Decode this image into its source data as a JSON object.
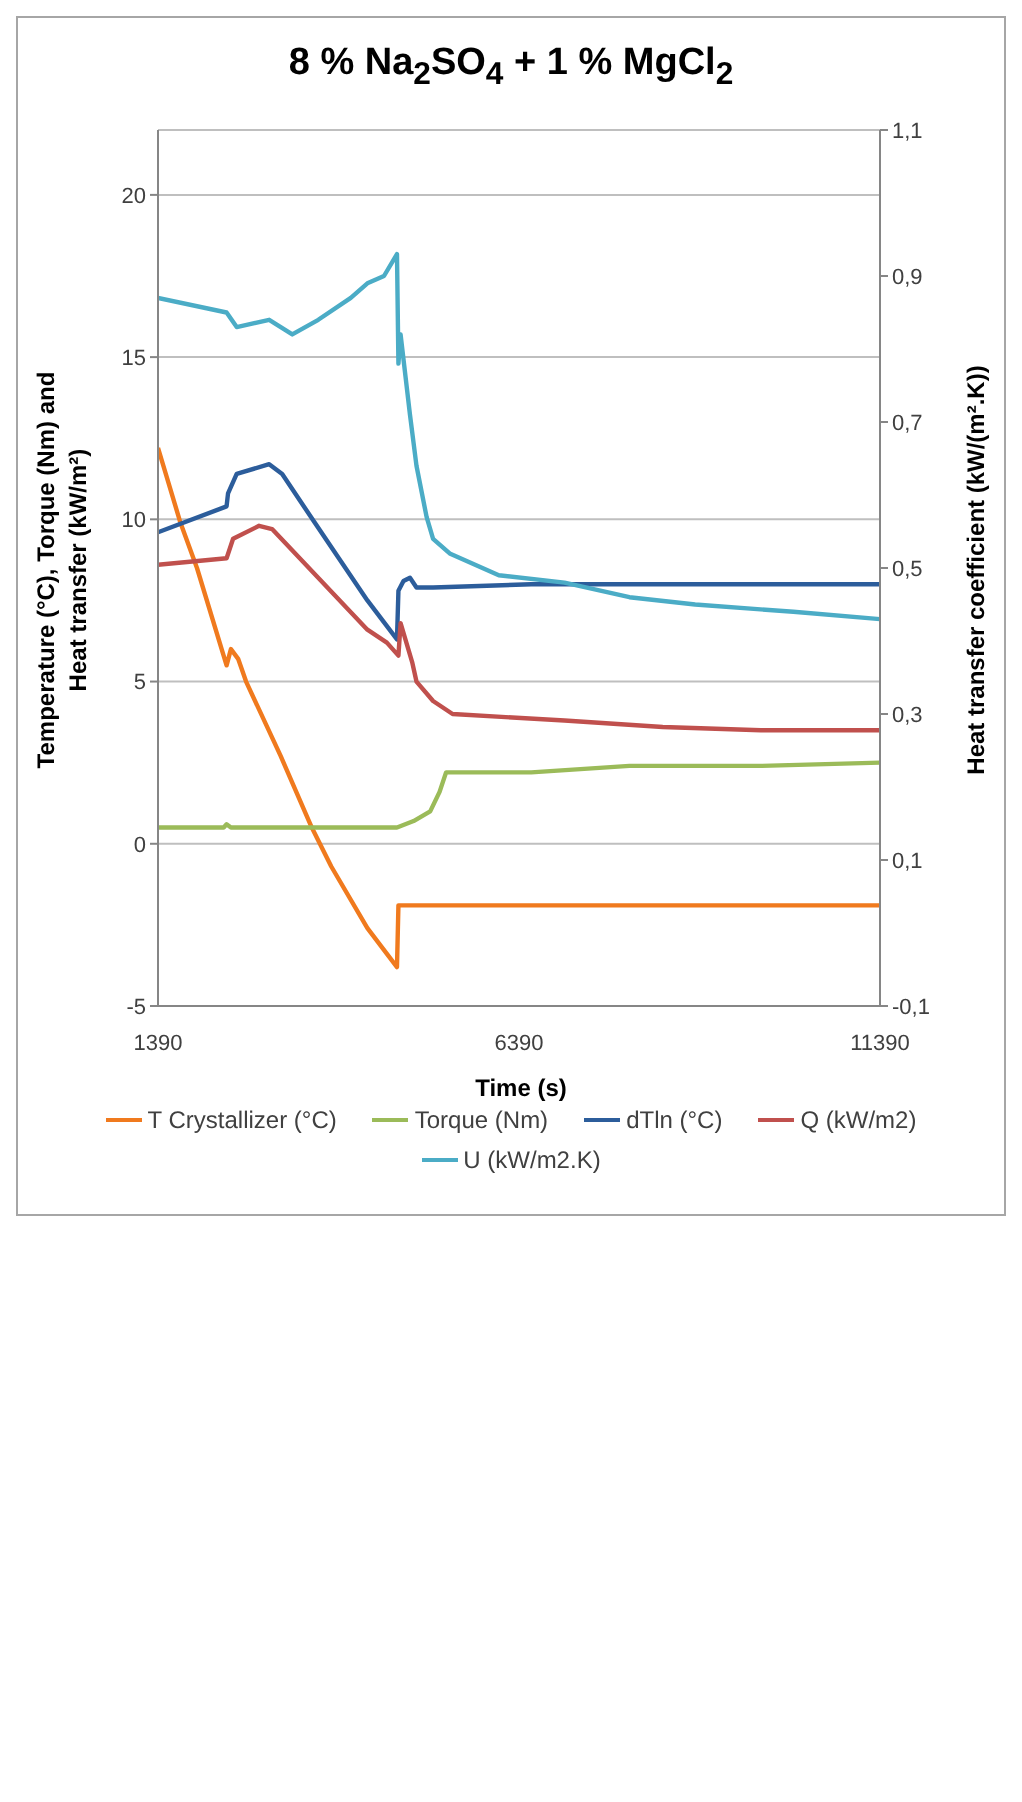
{
  "chart_data": {
    "type": "line",
    "title": "8 % Na$_{2}$SO$_{4}$ + 1 % MgCl$_{2}$",
    "xlabel": "Time (s)",
    "ylabel": "Temperature (°C), Torque (Nm) and Heat transfer (kW/m²)",
    "y2label": "Heat transfer coefficient (kW/(m².K))",
    "xlim": [
      1390,
      11390
    ],
    "xticks": [
      1390,
      6390,
      11390
    ],
    "ylim": [
      -5,
      22
    ],
    "yticks": [
      -5,
      0,
      5,
      10,
      15,
      20
    ],
    "y2lim": [
      -0.1,
      1.1
    ],
    "y2ticks": [
      {
        "value": -0.1,
        "label": "-0,1"
      },
      {
        "value": 0.1,
        "label": "0,1"
      },
      {
        "value": 0.3,
        "label": "0,3"
      },
      {
        "value": 0.5,
        "label": "0,5"
      },
      {
        "value": 0.7,
        "label": "0,7"
      },
      {
        "value": 0.9,
        "label": "0,9"
      },
      {
        "value": 1.1,
        "label": "1,1"
      }
    ],
    "grid": "y",
    "legend": "bottom",
    "marker": "none",
    "line_style": "solid",
    "series": [
      {
        "name": "T Crystallizer (°C)",
        "color": "#f07a1e",
        "x": [
          1390,
          1700,
          1930,
          2340,
          2400,
          2500,
          2610,
          3090,
          3520,
          3790,
          4290,
          4700,
          4720,
          5200,
          11390
        ],
        "values": [
          12.2,
          9.9,
          8.5,
          5.5,
          6.0,
          5.7,
          5.0,
          2.7,
          0.5,
          -0.7,
          -2.6,
          -3.8,
          -1.9,
          -1.9,
          -1.9
        ]
      },
      {
        "name": "Torque (Nm)",
        "color": "#9bbb59",
        "x": [
          1390,
          2300,
          2340,
          2400,
          3000,
          4000,
          4700,
          4930,
          5160,
          5290,
          5380,
          6560,
          7920,
          9740,
          11390
        ],
        "values": [
          0.5,
          0.5,
          0.6,
          0.5,
          0.5,
          0.5,
          0.5,
          0.7,
          1.0,
          1.6,
          2.2,
          2.2,
          2.4,
          2.4,
          2.5
        ]
      },
      {
        "name": "dTln (°C)",
        "color": "#2c5d9b",
        "x": [
          1390,
          2340,
          2360,
          2480,
          2930,
          3110,
          3560,
          4290,
          4700,
          4720,
          4790,
          4880,
          4970,
          5200,
          6560,
          11390
        ],
        "values": [
          9.6,
          10.4,
          10.8,
          11.4,
          11.7,
          11.4,
          9.9,
          7.5,
          6.3,
          7.8,
          8.1,
          8.2,
          7.9,
          7.9,
          8.0,
          8.0
        ]
      },
      {
        "name": "Q (kW/m2)",
        "color": "#c0504d",
        "x": [
          1390,
          2340,
          2430,
          2790,
          2970,
          4290,
          4560,
          4720,
          4750,
          4910,
          4970,
          5200,
          5470,
          7020,
          8380,
          9740,
          11390
        ],
        "values": [
          8.6,
          8.8,
          9.4,
          9.8,
          9.7,
          6.6,
          6.2,
          5.8,
          6.8,
          5.6,
          5.0,
          4.4,
          4.0,
          3.8,
          3.6,
          3.5,
          3.5
        ]
      },
      {
        "name": "U (kW/m2.K)",
        "color": "#4bacc6",
        "axis": "y2",
        "x": [
          1390,
          2340,
          2480,
          2930,
          3250,
          3610,
          4060,
          4290,
          4520,
          4700,
          4720,
          4750,
          4880,
          4970,
          5110,
          5200,
          5430,
          6110,
          7020,
          7920,
          8830,
          10190,
          11390
        ],
        "values": [
          0.87,
          0.85,
          0.83,
          0.84,
          0.82,
          0.84,
          0.87,
          0.89,
          0.9,
          0.93,
          0.78,
          0.82,
          0.71,
          0.64,
          0.57,
          0.54,
          0.52,
          0.49,
          0.48,
          0.46,
          0.45,
          0.44,
          0.43
        ]
      }
    ]
  }
}
